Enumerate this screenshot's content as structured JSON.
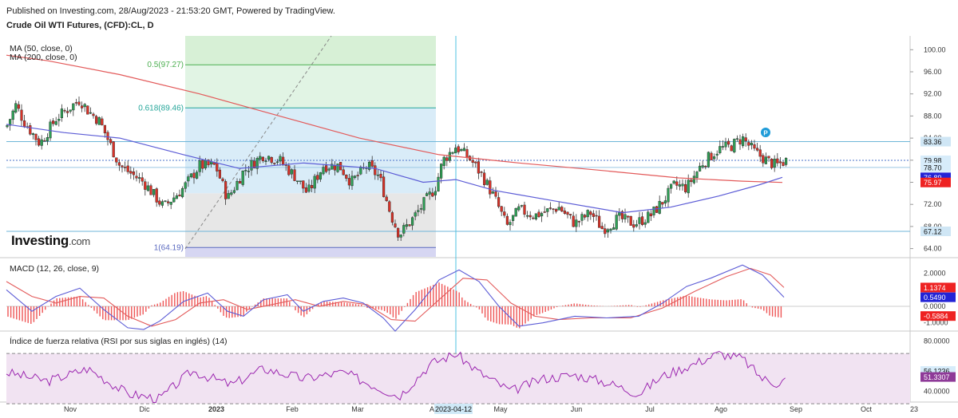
{
  "header": {
    "published": "Published on Investing.com, 28/Aug/2023 - 21:53:20 GMT, Powered by TradingView.",
    "symbol": "Crude Oil WTI Futures, (CFD):CL, D"
  },
  "logo": {
    "brand": "Investing",
    "domain": ".com"
  },
  "chart_data": [
    {
      "type": "candlestick",
      "title": "Crude Oil WTI Futures, (CFD):CL, D",
      "indicators": [
        "MA (50, close, 0)",
        "MA (200, close, 0)"
      ],
      "ylim": [
        62.5,
        102.5
      ],
      "y_ticks": [
        "64.00",
        "68.00",
        "72.00",
        "76.00",
        "80.00",
        "84.00",
        "88.00",
        "92.00",
        "96.00",
        "100.00"
      ],
      "price_labels": [
        {
          "value": 83.36,
          "text": "83.36",
          "color": "#cfe6f5"
        },
        {
          "value": 79.98,
          "text": "79.98",
          "color": "#d7ecfa"
        },
        {
          "value": 78.7,
          "text": "78.70",
          "color": "#d7ecfa"
        },
        {
          "value": 76.89,
          "text": "76.89",
          "color": "#2323d6"
        },
        {
          "value": 75.97,
          "text": "75.97",
          "color": "#ee2222"
        },
        {
          "value": 67.12,
          "text": "67.12",
          "color": "#cfe6f5"
        }
      ],
      "fibonacci": [
        {
          "text": "0.5(97.27)",
          "value": 97.27,
          "color": "#4caf50"
        },
        {
          "text": "0.618(89.46)",
          "value": 89.46,
          "color": "#26a69a"
        },
        {
          "text": "1(64.19)",
          "value": 64.19,
          "color": "#5c6bc0"
        }
      ],
      "x_ticks": [
        "Nov",
        "Dic",
        "2023",
        "Feb",
        "Mar",
        "A",
        "2023-04-12",
        "May",
        "Jun",
        "Jul",
        "Ago",
        "Sep",
        "Oct",
        "23"
      ],
      "highlighted_date": "2023-04-12",
      "marker": "P",
      "series": [
        {
          "name": "MA (50, close, 0)",
          "color": "#5c5cd6"
        },
        {
          "name": "MA (200, close, 0)",
          "color": "#e35a5a"
        }
      ]
    },
    {
      "type": "line",
      "title": "MACD (12, 26, close, 9)",
      "ylim": [
        -1.4,
        2.8
      ],
      "y_ticks": [
        "-1.0000",
        "0.0000",
        "1.0000",
        "2.0000"
      ],
      "value_labels": [
        {
          "value": 1.1374,
          "text": "1.1374",
          "color": "#ee2222"
        },
        {
          "value": 0.549,
          "text": "0.5490",
          "color": "#2323d6"
        },
        {
          "value": -0.5884,
          "text": "-0.5884",
          "color": "#ee2222"
        }
      ],
      "series": [
        {
          "name": "MACD",
          "color": "#5c5cd6"
        },
        {
          "name": "Signal",
          "color": "#e35a5a"
        },
        {
          "name": "Histogram",
          "color": "#ee4444"
        }
      ]
    },
    {
      "type": "line",
      "title": "Índice de fuerza relativa (RSI por sus siglas en inglés) (14)",
      "ylim": [
        32,
        86
      ],
      "y_ticks": [
        "40.0000",
        "80.0000"
      ],
      "bands": [
        30,
        70
      ],
      "value_labels": [
        {
          "value": 56.1236,
          "text": "56.1236",
          "color": "#d7ecfa"
        },
        {
          "value": 51.3307,
          "text": "51.3307",
          "color": "#8e3a98"
        }
      ],
      "series": [
        {
          "name": "RSI",
          "color": "#9c27b0"
        }
      ]
    }
  ]
}
